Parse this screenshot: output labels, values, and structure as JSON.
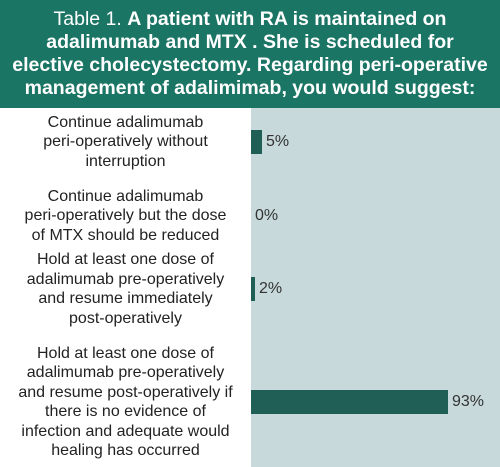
{
  "header": {
    "table_label": "Table 1.",
    "question": "A patient with RA is maintained on adalimumab and MTX . She is scheduled for elective cholecystectomy. Regarding peri-operative management of adalimimab, you would suggest:"
  },
  "colors": {
    "header_bg": "#1b7565",
    "plot_bg": "#c7d9db",
    "bar": "#1f5f55"
  },
  "chart_data": {
    "type": "bar",
    "orientation": "horizontal",
    "title": "",
    "xlabel": "",
    "ylabel": "",
    "xlim": [
      0,
      100
    ],
    "grid": false,
    "legend": "none",
    "categories": [
      "Continue adalimumab peri-operatively without interruption",
      "Continue adalimumab peri-operatively but the dose of MTX should be reduced",
      "Hold at least one dose of adalimumab pre-operatively and resume immediately post-operatively",
      "Hold at least one dose of adalimumab pre-operatively and resume post-operatively if there is no evidence of infection and adequate would healing has occurred"
    ],
    "category_lines": [
      [
        "Continue adalimumab",
        "peri-operatively without",
        "interruption"
      ],
      [
        "Continue adalimumab",
        "peri-operatively but the dose",
        "of MTX should be reduced"
      ],
      [
        "Hold at least one dose of",
        "adalimumab pre-operatively",
        "and resume immediately",
        "post-operatively"
      ],
      [
        "Hold at least one dose of",
        "adalimumab pre-operatively",
        "and resume post-operatively if",
        "there is no evidence of",
        "infection and adequate would",
        "healing has occurred"
      ]
    ],
    "values": [
      5,
      0,
      2,
      93
    ],
    "value_labels": [
      "5%",
      "0%",
      "2%",
      "93%"
    ]
  }
}
